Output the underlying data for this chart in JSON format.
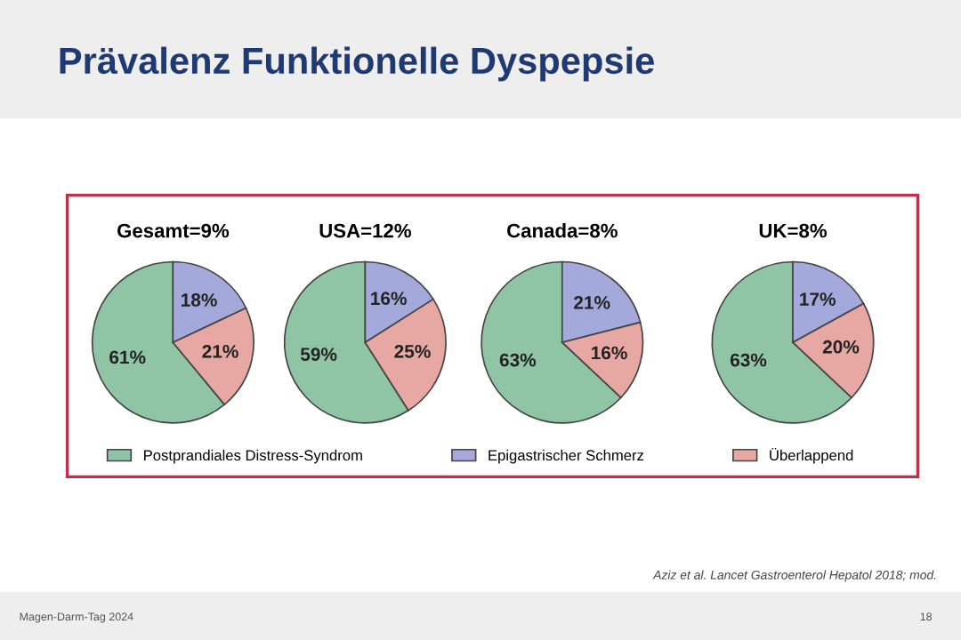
{
  "chart_data": [
    {
      "type": "pie",
      "title": "Gesamt=9%",
      "categories": [
        "Postprandiales Distress-Syndrom",
        "Epigastrischer Schmerz",
        "Überlappend"
      ],
      "values": [
        61,
        18,
        21
      ],
      "value_labels": [
        "61%",
        "18%",
        "21%"
      ],
      "colors": [
        "#8fc4a4",
        "#a3aadb",
        "#e7a7a2"
      ],
      "legend": "bottom",
      "annotations": [
        "Prävalenz Funktionelle Dyspepsie",
        "Aziz et al. Lancet Gastroenterol Hepatol 2018; mod.",
        "Magen-Darm-Tag 2024",
        "18"
      ]
    },
    {
      "type": "pie",
      "title": "USA=12%",
      "categories": [
        null,
        null,
        null
      ],
      "values": [
        59,
        16,
        25
      ],
      "value_labels": [
        "59%",
        "16%",
        "25%"
      ],
      "colors": [
        "#8fc4a4",
        "#a3aadb",
        "#e7a7a2"
      ]
    },
    {
      "type": "pie",
      "title": "Canada=8%",
      "categories": [
        null,
        null,
        null
      ],
      "values": [
        63,
        21,
        16
      ],
      "value_labels": [
        "63%",
        "21%",
        "16%"
      ],
      "colors": [
        "#8fc4a4",
        "#a3aadb",
        "#e7a7a2"
      ]
    },
    {
      "type": "pie",
      "title": "UK=8%",
      "categories": [
        null,
        null,
        null
      ],
      "values": [
        63,
        17,
        20
      ],
      "value_labels": [
        "63%",
        "17%",
        "20%"
      ],
      "colors": [
        "#8fc4a4",
        "#a3aadb",
        "#e7a7a2"
      ]
    }
  ]
}
